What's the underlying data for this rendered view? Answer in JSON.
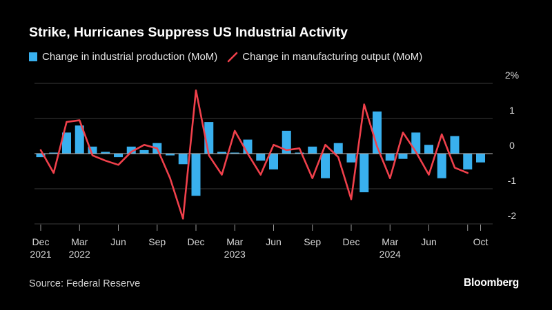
{
  "chart_data": {
    "type": "bar+line",
    "title": "Strike, Hurricanes Suppress US Industrial Activity",
    "source": "Source: Federal Reserve",
    "brand": "Bloomberg",
    "unit": "%",
    "ylim": [
      -2,
      2
    ],
    "yticks": [
      {
        "value": 2,
        "label": "2%"
      },
      {
        "value": 1,
        "label": "1"
      },
      {
        "value": 0,
        "label": "0"
      },
      {
        "value": -1,
        "label": "-1"
      },
      {
        "value": -2,
        "label": "-2"
      }
    ],
    "periods": [
      "Dec 2021",
      "Jan 2022",
      "Feb 2022",
      "Mar 2022",
      "Apr 2022",
      "May 2022",
      "Jun 2022",
      "Jul 2022",
      "Aug 2022",
      "Sep 2022",
      "Oct 2022",
      "Nov 2022",
      "Dec 2022",
      "Jan 2023",
      "Feb 2023",
      "Mar 2023",
      "Apr 2023",
      "May 2023",
      "Jun 2023",
      "Jul 2023",
      "Aug 2023",
      "Sep 2023",
      "Oct 2023",
      "Nov 2023",
      "Dec 2023",
      "Jan 2024",
      "Feb 2024",
      "Mar 2024",
      "Apr 2024",
      "May 2024",
      "Jun 2024",
      "Jul 2024",
      "Aug 2024",
      "Sep 2024",
      "Oct 2024"
    ],
    "xticks": [
      {
        "index": 0,
        "label": "Dec",
        "sublabel": "2021"
      },
      {
        "index": 3,
        "label": "Mar",
        "sublabel": "2022"
      },
      {
        "index": 6,
        "label": "Jun",
        "sublabel": ""
      },
      {
        "index": 9,
        "label": "Sep",
        "sublabel": ""
      },
      {
        "index": 12,
        "label": "Dec",
        "sublabel": ""
      },
      {
        "index": 15,
        "label": "Mar",
        "sublabel": "2023"
      },
      {
        "index": 18,
        "label": "Jun",
        "sublabel": ""
      },
      {
        "index": 21,
        "label": "Sep",
        "sublabel": ""
      },
      {
        "index": 24,
        "label": "Dec",
        "sublabel": ""
      },
      {
        "index": 27,
        "label": "Mar",
        "sublabel": "2024"
      },
      {
        "index": 30,
        "label": "Jun",
        "sublabel": ""
      },
      {
        "index": 34,
        "label": "Oct",
        "sublabel": ""
      }
    ],
    "series": [
      {
        "name": "Change in industrial production (MoM)",
        "kind": "bar",
        "color": "#39b0ee",
        "values": [
          -0.1,
          0.0,
          0.6,
          0.8,
          0.2,
          0.05,
          -0.1,
          0.2,
          0.1,
          0.3,
          -0.05,
          -0.3,
          -1.2,
          0.9,
          0.05,
          0.0,
          0.4,
          -0.2,
          -0.45,
          0.65,
          0.0,
          0.2,
          -0.7,
          0.3,
          -0.25,
          -1.1,
          1.2,
          -0.2,
          -0.15,
          0.6,
          0.25,
          -0.7,
          0.5,
          -0.45,
          -0.25
        ]
      },
      {
        "name": "Change in manufacturing output (MoM)",
        "kind": "line",
        "color": "#f0404b",
        "values": [
          0.1,
          -0.55,
          0.9,
          0.95,
          -0.05,
          -0.2,
          -0.32,
          0.05,
          0.25,
          0.15,
          -0.7,
          -1.85,
          1.8,
          -0.05,
          -0.6,
          0.65,
          0.0,
          -0.6,
          0.25,
          0.1,
          0.15,
          -0.7,
          0.25,
          -0.1,
          -1.3,
          1.4,
          0.2,
          -0.7,
          0.6,
          0.05,
          -0.6,
          0.55,
          -0.4,
          -0.55,
          null
        ]
      }
    ]
  },
  "legend": {
    "bar_label": "Change in industrial production (MoM)",
    "line_label": "Change in manufacturing output (MoM)"
  }
}
